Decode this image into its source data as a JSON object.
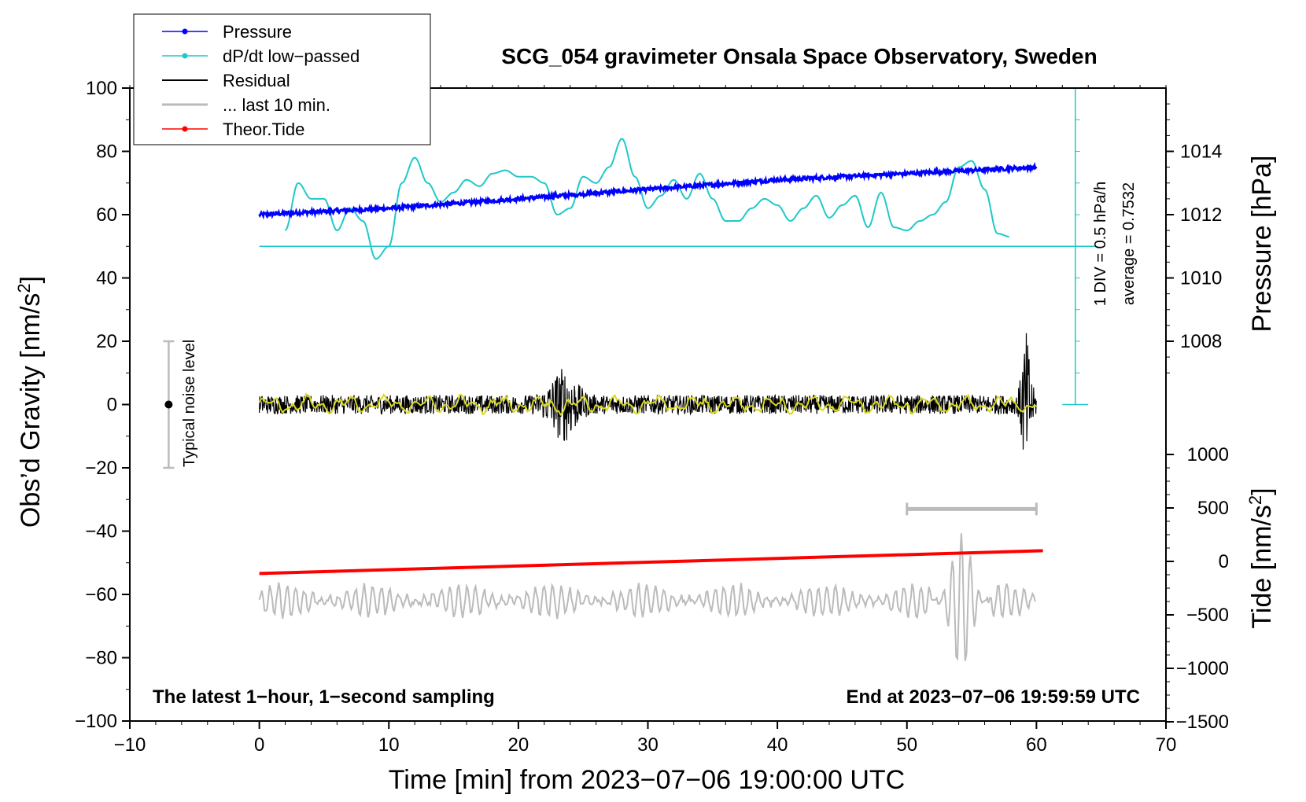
{
  "chart_data": {
    "type": "line",
    "title": "SCG_054 gravimeter Onsala Space Observatory, Sweden",
    "xlabel": "Time [min] from 2023−07−06 19:00:00 UTC",
    "ylabel_left_main": "Obs’d Gravity [nm/s",
    "ylabel_left_sup": "2",
    "ylabel_left_close": "]",
    "ylabel_right_pressure": "Pressure [hPa]",
    "ylabel_right_tide_main": "Tide [nm/s",
    "ylabel_right_tide_sup": "2",
    "ylabel_right_tide_close": "]",
    "xlim": [
      -10,
      70
    ],
    "ylim_left": [
      -100,
      100
    ],
    "pressure_ylim": [
      1006,
      1016
    ],
    "tide_ylim": [
      -1500,
      1000
    ],
    "x_ticks": [
      "−10",
      "0",
      "10",
      "20",
      "30",
      "40",
      "50",
      "60",
      "70"
    ],
    "x_tick_values": [
      -10,
      0,
      10,
      20,
      30,
      40,
      50,
      60,
      70
    ],
    "y_ticks_left": [
      "100",
      "80",
      "60",
      "40",
      "20",
      "0",
      "−20",
      "−40",
      "−60",
      "−80",
      "−100"
    ],
    "y_tick_values_left": [
      100,
      80,
      60,
      40,
      20,
      0,
      -20,
      -40,
      -60,
      -80,
      -100
    ],
    "pressure_ticks": [
      "1014",
      "1012",
      "1010",
      "1008"
    ],
    "pressure_tick_values": [
      1014,
      1012,
      1010,
      1008
    ],
    "tide_ticks": [
      "1000",
      "500",
      "0",
      "−500",
      "−1000",
      "−1500"
    ],
    "tide_tick_values": [
      1000,
      500,
      0,
      -500,
      -1000,
      -1500
    ],
    "legend": [
      {
        "label": "Pressure",
        "color": "#0000ff",
        "marker": true
      },
      {
        "label": "dP/dt low−passed",
        "color": "#20c8c8",
        "marker": true
      },
      {
        "label": "Residual",
        "color": "#000000",
        "marker": false
      },
      {
        "label": "... last 10 min.",
        "color": "#bbbbbb",
        "marker": false
      },
      {
        "label": "Theor.Tide",
        "color": "#ff0000",
        "marker": true
      }
    ],
    "series": [
      {
        "name": "Pressure",
        "unit": "hPa",
        "color": "#0000ff",
        "x": [
          0,
          10,
          20,
          30,
          40,
          50,
          60
        ],
        "values": [
          1012.0,
          1012.2,
          1012.5,
          1012.8,
          1013.1,
          1013.3,
          1013.5
        ]
      },
      {
        "name": "dP/dt low-passed",
        "unit": "nm/s2 (plotted)",
        "color": "#20c8c8",
        "x": [
          2,
          3,
          4,
          5,
          6,
          7,
          8,
          9,
          10,
          11,
          12,
          13,
          14,
          15,
          16,
          17,
          18,
          19,
          20,
          21,
          22,
          23,
          24,
          25,
          26,
          27,
          28,
          29,
          30,
          31,
          32,
          33,
          34,
          35,
          36,
          37,
          38,
          39,
          40,
          41,
          42,
          43,
          44,
          45,
          46,
          47,
          48,
          49,
          50,
          51,
          52,
          53,
          54,
          55,
          56,
          57,
          58
        ],
        "values": [
          55,
          70,
          65,
          65,
          55,
          62,
          58,
          46,
          50,
          70,
          78,
          70,
          64,
          67,
          71,
          69,
          73,
          74,
          72,
          72,
          70,
          60,
          62,
          72,
          70,
          75,
          84,
          72,
          62,
          66,
          71,
          65,
          73,
          65,
          58,
          58,
          62,
          65,
          63,
          58,
          62,
          66,
          59,
          63,
          66,
          56,
          67,
          56,
          55,
          58,
          60,
          64,
          75,
          77,
          68,
          54,
          53
        ]
      },
      {
        "name": "Residual",
        "unit": "nm/s2",
        "color": "#000000",
        "x": [
          0,
          20,
          22,
          23.5,
          25,
          30,
          50,
          58,
          58.7,
          59.1,
          59.5,
          60
        ],
        "values": [
          0,
          0,
          5,
          8,
          3,
          0,
          0,
          1,
          12,
          17,
          -24,
          0
        ]
      },
      {
        "name": "... last 10 min.",
        "unit": "nm/s2 (scaled)",
        "color": "#bbbbbb",
        "x": [
          0,
          10,
          20,
          30,
          40,
          50,
          52.5,
          53.5,
          54.2,
          55,
          60
        ],
        "values": [
          -62,
          -61,
          -61,
          -62,
          -62,
          -62,
          -55,
          -44,
          -84,
          -52,
          -62
        ]
      },
      {
        "name": "Theor.Tide",
        "unit": "nm/s2",
        "color": "#ff0000",
        "x": [
          0,
          60
        ],
        "values": [
          -113,
          100
        ]
      }
    ],
    "pressure_reference_line": 50,
    "noise_bar": {
      "label": "Typical noise level",
      "x": -7,
      "range": [
        -20,
        20
      ]
    },
    "last10_bar": {
      "x_range": [
        50,
        60
      ],
      "y": -33
    },
    "annotations": {
      "div_note": "1 DIV = 0.5 hPa/h",
      "average_note": "average = 0.7532",
      "footer_left": "The latest 1−hour, 1−second sampling",
      "footer_right": "End at 2023−07−06 19:59:59 UTC"
    }
  }
}
